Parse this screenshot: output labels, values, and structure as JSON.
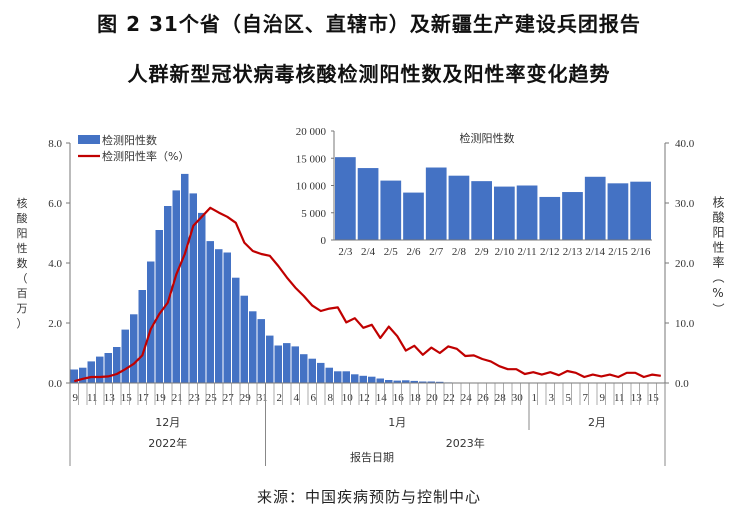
{
  "title_line1": "图 2 31个省（自治区、直辖市）及新疆生产建设兵团报告",
  "title_line2": "人群新型冠状病毒核酸检测阳性数及阳性率变化趋势",
  "source": "来源：中国疾病预防与控制中心",
  "colors": {
    "bar": "#4472C4",
    "line": "#C00000"
  },
  "chart_data": [
    {
      "type": "bar+line",
      "xlabel": "报告日期",
      "ylabel_left": "核酸阳性数（百万）",
      "ylabel_right": "核酸阳性率（%）",
      "ylim_left": [
        0,
        8
      ],
      "ylim_right": [
        0,
        40
      ],
      "yticks_left": [
        "0.0",
        "2.0",
        "4.0",
        "6.0",
        "8.0"
      ],
      "yticks_right": [
        "0.0",
        "10.0",
        "20.0",
        "30.0",
        "40.0"
      ],
      "legend": {
        "position": "top-left",
        "bar": "检测阳性数",
        "line": "检测阳性率（%）"
      },
      "months": [
        {
          "label": "12月",
          "year": "2022年",
          "days": 23
        },
        {
          "label": "1月",
          "year": "2023年",
          "days": 31
        },
        {
          "label": "2月",
          "year": "2023年",
          "days": 16
        }
      ],
      "years": [
        {
          "label": "2022年",
          "days": 23
        },
        {
          "label": "2023年",
          "days": 47
        }
      ],
      "x_tick_labels": [
        "9",
        "",
        "11",
        "",
        "13",
        "",
        "15",
        "",
        "17",
        "",
        "19",
        "",
        "21",
        "",
        "23",
        "",
        "25",
        "",
        "27",
        "",
        "29",
        "",
        "31",
        "",
        "2",
        "",
        "4",
        "",
        "6",
        "",
        "8",
        "",
        "10",
        "",
        "12",
        "",
        "14",
        "",
        "16",
        "",
        "18",
        "",
        "20",
        "",
        "22",
        "",
        "24",
        "",
        "26",
        "",
        "28",
        "",
        "30",
        "",
        "1",
        "",
        "3",
        "",
        "5",
        "",
        "7",
        "",
        "9",
        "",
        "11",
        "",
        "13",
        "",
        "15",
        ""
      ],
      "series": [
        {
          "name": "检测阳性数",
          "axis": "left",
          "unit": "百万",
          "values": [
            0.45,
            0.51,
            0.72,
            0.88,
            1.0,
            1.2,
            1.78,
            2.29,
            3.1,
            4.05,
            5.1,
            5.9,
            6.42,
            6.97,
            6.32,
            5.67,
            4.73,
            4.46,
            4.35,
            3.51,
            2.91,
            2.39,
            2.13,
            1.58,
            1.25,
            1.33,
            1.22,
            0.96,
            0.81,
            0.67,
            0.51,
            0.39,
            0.39,
            0.29,
            0.24,
            0.21,
            0.15,
            0.1,
            0.08,
            0.09,
            0.07,
            0.05,
            0.05,
            0.04,
            0.02,
            0.01,
            0.01,
            0.01,
            0.01,
            0.01,
            0.01,
            0.01,
            0.01,
            0.01,
            0.015,
            0.015,
            0.0152,
            0.0132,
            0.0109,
            0.0087,
            0.0133,
            0.0118,
            0.0108,
            0.0098,
            0.01,
            0.0079,
            0.0088,
            0.0116,
            0.0104,
            0.0107
          ]
        },
        {
          "name": "检测阳性率（%）",
          "axis": "right",
          "unit": "%",
          "values": [
            0.3,
            0.7,
            1.0,
            1.0,
            1.1,
            1.5,
            2.3,
            3.2,
            4.6,
            9.0,
            11.5,
            13.4,
            18.1,
            21.5,
            26.2,
            27.7,
            29.2,
            28.4,
            27.7,
            26.7,
            23.4,
            22.0,
            21.5,
            21.2,
            19.5,
            17.6,
            15.9,
            14.5,
            12.9,
            12.0,
            12.4,
            12.6,
            10.1,
            10.8,
            9.2,
            9.7,
            7.5,
            9.4,
            7.8,
            5.4,
            6.2,
            4.7,
            5.9,
            5.0,
            6.1,
            5.7,
            4.5,
            4.6,
            4.0,
            3.6,
            2.8,
            2.3,
            2.3,
            1.5,
            1.8,
            1.4,
            1.8,
            1.3,
            2.0,
            1.7,
            1.0,
            1.4,
            1.1,
            1.4,
            1.0,
            1.7,
            1.7,
            1.0,
            1.4,
            1.2
          ]
        }
      ]
    },
    {
      "type": "bar",
      "title": "检测阳性数",
      "categories": [
        "2/3",
        "2/4",
        "2/5",
        "2/6",
        "2/7",
        "2/8",
        "2/9",
        "2/10",
        "2/11",
        "2/12",
        "2/13",
        "2/14",
        "2/15",
        "2/16"
      ],
      "values": [
        15200,
        13200,
        10900,
        8700,
        13300,
        11800,
        10800,
        9800,
        10000,
        7900,
        8800,
        11600,
        10400,
        10700
      ],
      "ylim": [
        0,
        20000
      ],
      "yticks": [
        "0",
        "5 000",
        "10 000",
        "15 000",
        "20 000"
      ]
    }
  ]
}
